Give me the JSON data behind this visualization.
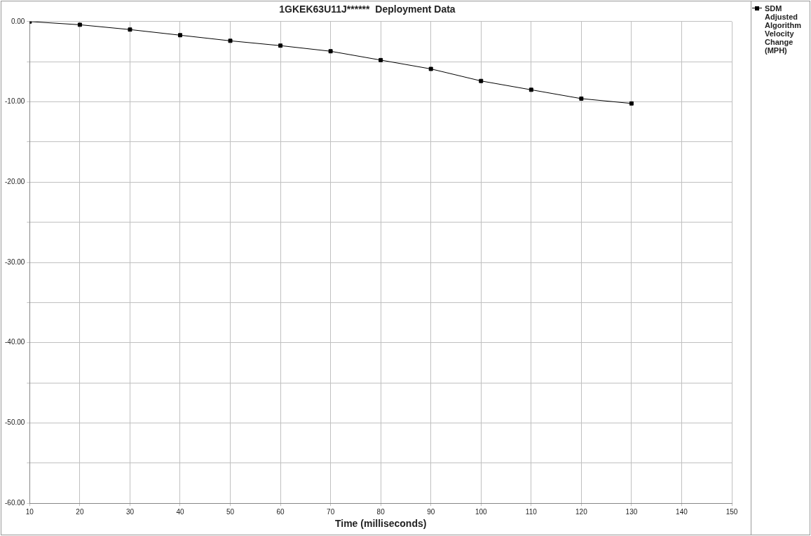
{
  "chart_data": {
    "type": "line",
    "title": "1GKEK63U11J******  Deployment Data",
    "xlabel": "Time (milliseconds)",
    "x": [
      10,
      20,
      30,
      40,
      50,
      60,
      70,
      80,
      90,
      100,
      110,
      120,
      130
    ],
    "series": [
      {
        "name": "SDM Adjusted Algorithm Velocity Change (MPH)",
        "color": "#000000",
        "values": [
          0,
          -0.4,
          -1.0,
          -1.7,
          -2.4,
          -3.0,
          -3.7,
          -4.8,
          -5.9,
          -7.4,
          -8.5,
          -9.6,
          -10.2
        ]
      }
    ],
    "xlim": [
      10,
      150
    ],
    "xticks": [
      10,
      20,
      30,
      40,
      50,
      60,
      70,
      80,
      90,
      100,
      110,
      120,
      130,
      140,
      150
    ],
    "ylim": [
      -60,
      0
    ],
    "yticks": [
      {
        "value": -60,
        "label": "-60.00"
      },
      {
        "value": -55,
        "label": null
      },
      {
        "value": -50,
        "label": "-50.00"
      },
      {
        "value": -45,
        "label": null
      },
      {
        "value": -40,
        "label": "-40.00"
      },
      {
        "value": -35,
        "label": null
      },
      {
        "value": -30,
        "label": "-30.00"
      },
      {
        "value": -25,
        "label": null
      },
      {
        "value": -20,
        "label": "-20.00"
      },
      {
        "value": -15,
        "label": null
      },
      {
        "value": -10,
        "label": "-10.00"
      },
      {
        "value": -5,
        "label": null
      },
      {
        "value": 0,
        "label": "0.00"
      }
    ],
    "grid": true,
    "legend": "top right",
    "marker": "square",
    "line_style": "solid"
  }
}
